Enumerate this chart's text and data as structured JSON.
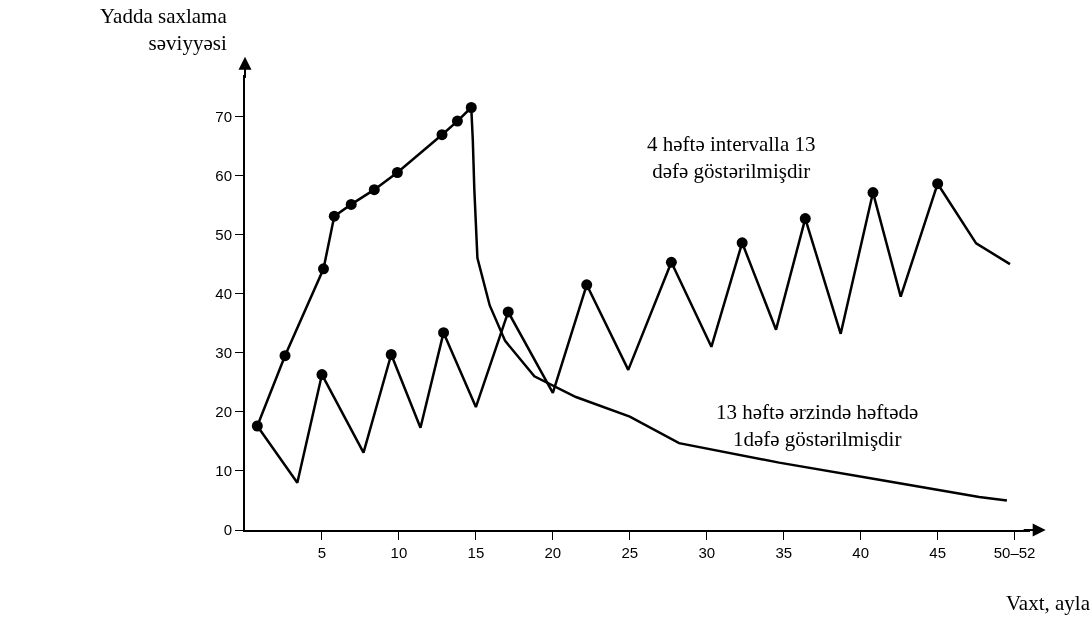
{
  "chart_data": {
    "type": "line",
    "xlabel": "Vaxt, ayla",
    "ylabel": "Yadda saxlama\nsəviyyəsi",
    "annotations": [
      "4 həftə intervalla 13\ndəfə göstərilmişdir",
      "13 həftə ərzində həftədə\n1dəfə göstərilmişdir"
    ],
    "xlim": [
      0,
      51
    ],
    "ylim": [
      0,
      77
    ],
    "xticks": [
      5,
      10,
      15,
      20,
      25,
      30,
      35,
      40,
      45,
      {
        "value": 50,
        "label": "50–52"
      }
    ],
    "yticks": [
      0,
      10,
      20,
      30,
      40,
      50,
      60,
      70
    ],
    "series": [
      {
        "color": "#000000",
        "marker": "circle",
        "x": [
          0.8,
          2.6,
          5.1,
          5.8,
          6.9,
          8.4,
          9.9,
          12.8,
          13.8,
          14.7
        ],
        "values": [
          17.6,
          29.5,
          44.2,
          53.1,
          55.1,
          57.6,
          60.5,
          66.9,
          69.2,
          71.5
        ]
      },
      {
        "color": "#000000",
        "marker": "none",
        "x": [
          14.7,
          14.8,
          14.9,
          15.1,
          15.9,
          16.9,
          18.8,
          21.5,
          25,
          28.2,
          34.7,
          41.2,
          47.7,
          49.5
        ],
        "values": [
          71.5,
          66,
          57.6,
          46,
          38,
          32,
          26,
          22.5,
          19.2,
          14.7,
          11.4,
          8.5,
          5.6,
          5
        ]
      },
      {
        "color": "#000000",
        "marker": "none",
        "x": [
          0.8,
          3.4,
          5.0,
          7.7,
          9.5,
          11.4,
          12.9,
          15.0,
          17.1,
          20.0,
          22.2,
          24.9,
          27.7,
          30.3,
          32.3,
          34.5,
          36.4,
          38.7,
          40.8,
          42.6,
          45.0,
          47.5,
          49.7
        ],
        "values": [
          17.6,
          8.0,
          26.3,
          13.1,
          29.7,
          17.3,
          33.4,
          20.8,
          36.9,
          23.2,
          41.5,
          27.1,
          45.3,
          31.0,
          48.6,
          33.9,
          52.7,
          33.2,
          57.1,
          39.5,
          58.6,
          48.5,
          45
        ]
      },
      {
        "type": "scatter",
        "color": "#000000",
        "marker": "circle",
        "x": [
          5.0,
          9.5,
          12.9,
          17.1,
          22.2,
          27.7,
          32.3,
          36.4,
          40.8,
          45.0
        ],
        "values": [
          26.3,
          29.7,
          33.4,
          36.9,
          41.5,
          45.3,
          48.6,
          52.7,
          57.1,
          58.6
        ]
      }
    ]
  }
}
